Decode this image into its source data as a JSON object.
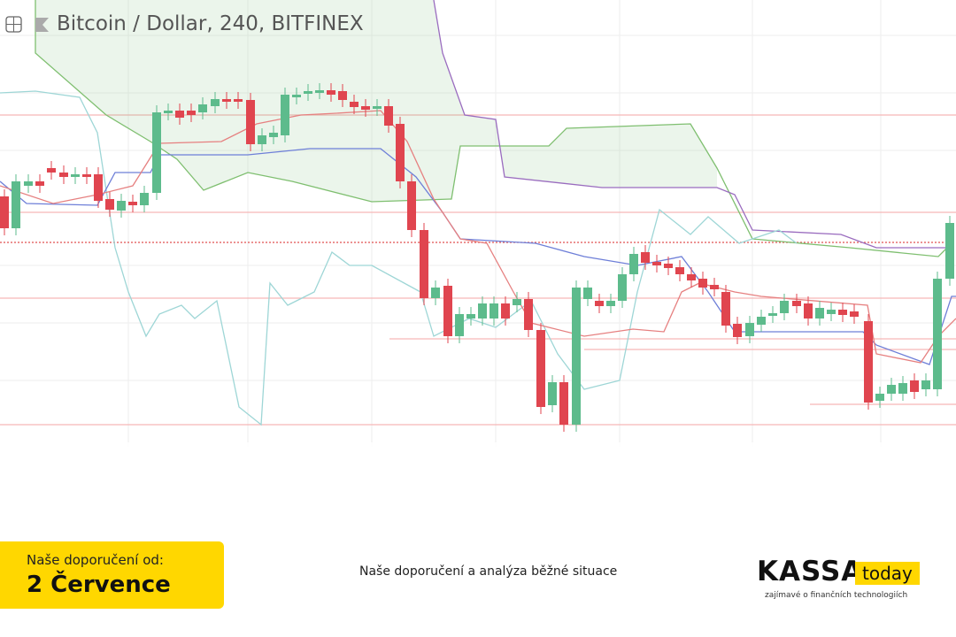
{
  "chart_header": {
    "title": "Bitcoin / Dollar, 240, BITFINEX"
  },
  "banner": {
    "label": "Naše doporučení od:",
    "date": "2 Července",
    "caption": "Naše doporučení a analýza běžné situace",
    "logo": {
      "brand": "KASSA",
      "tag": "today",
      "tagline": "zajímavé o finančních technologiích"
    }
  }
}
